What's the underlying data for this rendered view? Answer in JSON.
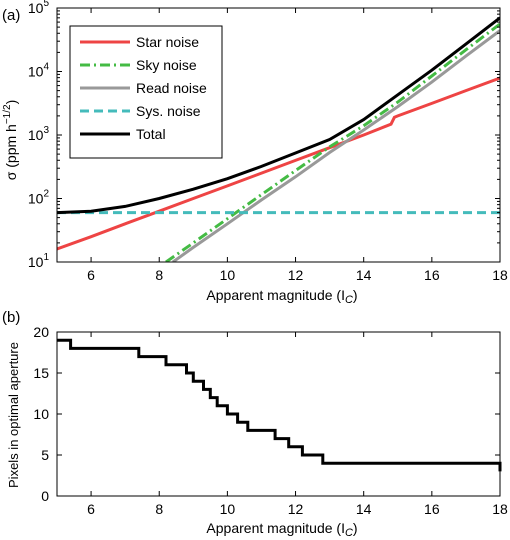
{
  "chart_data": [
    {
      "panel_label": "(a)",
      "type": "line",
      "xlabel": "Apparent magnitude (I",
      "xlabel_sub": "C",
      "xlabel_end": ")",
      "ylabel": "σ (ppm h",
      "ylabel_sup": "−1/2",
      "ylabel_end": ")",
      "xlim": [
        5,
        18
      ],
      "ylim": [
        10,
        100000
      ],
      "yscale": "log",
      "xticks": [
        6,
        8,
        10,
        12,
        14,
        16,
        18
      ],
      "xtick_labels": [
        "6",
        "8",
        "10",
        "12",
        "14",
        "16",
        "18"
      ],
      "yticks": [
        10,
        100,
        1000,
        10000,
        100000
      ],
      "ytick_base": "10",
      "ytick_exponents": [
        "1",
        "2",
        "3",
        "4",
        "5"
      ],
      "legend_position": "top-left",
      "series": [
        {
          "name": "Star noise",
          "color": "#ee4444",
          "dash": "solid",
          "x": [
            5,
            6,
            7,
            8,
            9,
            10,
            11,
            12,
            13,
            14,
            14.8,
            14.9,
            15,
            16,
            17,
            18
          ],
          "y": [
            16,
            25,
            40,
            63,
            100,
            158,
            251,
            398,
            630,
            1000,
            1480,
            1900,
            2000,
            3150,
            5000,
            7900
          ]
        },
        {
          "name": "Sky noise",
          "color": "#44bb44",
          "dash": "dash-dot",
          "x": [
            8.2,
            9,
            10,
            11,
            12,
            13,
            14,
            15,
            16,
            17,
            18
          ],
          "y": [
            10,
            20,
            48,
            115,
            275,
            650,
            1400,
            3300,
            8500,
            22000,
            56000
          ]
        },
        {
          "name": "Read noise",
          "color": "#999999",
          "dash": "solid",
          "x": [
            8.4,
            9,
            10,
            11,
            12,
            13,
            14,
            15,
            16,
            17,
            18
          ],
          "y": [
            10,
            17,
            40,
            95,
            220,
            530,
            1200,
            2800,
            6800,
            17500,
            44000
          ]
        },
        {
          "name": "Sys. noise",
          "color": "#44bbbb",
          "dash": "dashed",
          "x": [
            5,
            18
          ],
          "y": [
            60,
            60
          ]
        },
        {
          "name": "Total",
          "color": "#000000",
          "dash": "solid",
          "x": [
            5,
            6,
            7,
            8,
            9,
            10,
            11,
            12,
            13,
            14,
            15,
            16,
            17,
            18
          ],
          "y": [
            60,
            63,
            75,
            100,
            140,
            205,
            320,
            520,
            850,
            1750,
            4300,
            10500,
            27000,
            70000
          ]
        }
      ]
    },
    {
      "panel_label": "(b)",
      "type": "line",
      "xlabel": "Apparent magnitude (I",
      "xlabel_sub": "C",
      "xlabel_end": ")",
      "ylabel": "Pixels in optimal aperture",
      "xlim": [
        5,
        18
      ],
      "ylim": [
        0,
        20
      ],
      "xticks": [
        6,
        8,
        10,
        12,
        14,
        16,
        18
      ],
      "xtick_labels": [
        "6",
        "8",
        "10",
        "12",
        "14",
        "16",
        "18"
      ],
      "yticks": [
        0,
        5,
        10,
        15,
        20
      ],
      "ytick_labels": [
        "0",
        "5",
        "10",
        "15",
        "20"
      ],
      "series": [
        {
          "color": "#000000",
          "step": true,
          "x": [
            5,
            5.2,
            5.4,
            6.9,
            7.4,
            7.8,
            8.2,
            8.5,
            8.8,
            9.0,
            9.3,
            9.5,
            9.7,
            10.0,
            10.3,
            10.6,
            11.0,
            11.4,
            11.8,
            12.2,
            12.8,
            14.8,
            18
          ],
          "y": [
            19,
            19,
            18,
            18,
            17,
            17,
            16,
            16,
            15,
            14,
            13,
            12,
            11,
            10,
            9,
            8,
            8,
            7,
            6,
            5,
            4,
            4,
            3
          ]
        }
      ]
    }
  ]
}
